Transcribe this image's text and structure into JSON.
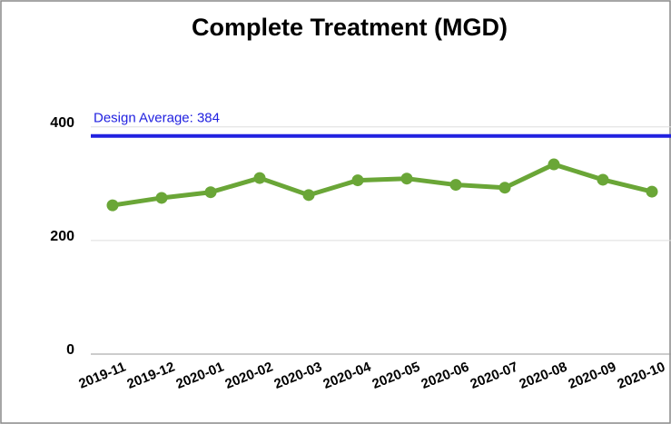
{
  "chart_data": {
    "type": "line",
    "title": "Complete Treatment (MGD)",
    "categories": [
      "2019-11",
      "2019-12",
      "2020-01",
      "2020-02",
      "2020-03",
      "2020-04",
      "2020-05",
      "2020-06",
      "2020-07",
      "2020-08",
      "2020-09",
      "2020-10"
    ],
    "series": [
      {
        "name": "Complete Treatment",
        "color": "#6aa637",
        "values": [
          262,
          275,
          285,
          310,
          280,
          306,
          309,
          298,
          293,
          334,
          307,
          286
        ]
      }
    ],
    "ylim": [
      0,
      430
    ],
    "yticks": [
      0,
      200,
      400
    ],
    "grid": true,
    "reference_line": {
      "value": 384,
      "label": "Design Average: 384",
      "color": "#2121e0"
    }
  }
}
